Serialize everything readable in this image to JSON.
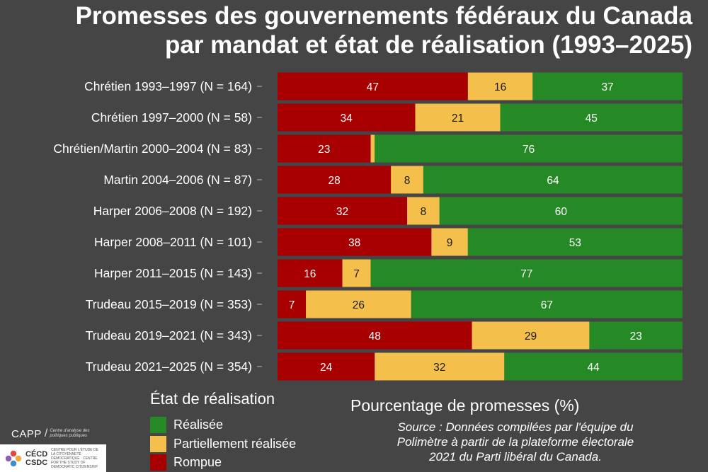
{
  "chart_data": {
    "type": "bar",
    "orientation": "horizontal",
    "stacked": true,
    "title_lines": [
      "Promesses des gouvernements fédéraux du Canada",
      "par mandat et état de réalisation (1993–2025)"
    ],
    "xlabel": "Pourcentage de promesses (%)",
    "xlim": [
      0,
      100
    ],
    "categories": [
      "Chrétien 1993–1997 (N = 164)",
      "Chrétien 1997–2000 (N = 58)",
      "Chrétien/Martin 2000–2004 (N = 83)",
      "Martin 2004–2006 (N = 87)",
      "Harper 2006–2008 (N = 192)",
      "Harper 2008–2011 (N = 101)",
      "Harper 2011–2015 (N = 143)",
      "Trudeau 2015–2019 (N = 353)",
      "Trudeau 2019–2021 (N = 343)",
      "Trudeau 2021–2025 (N = 354)"
    ],
    "series": [
      {
        "name": "Rompue",
        "color": "#a80000",
        "values": [
          47,
          34,
          23,
          28,
          32,
          38,
          16,
          7,
          48,
          24
        ]
      },
      {
        "name": "Partiellement réalisée",
        "color": "#f4c04b",
        "values": [
          16,
          21,
          1,
          8,
          8,
          9,
          7,
          26,
          29,
          32
        ]
      },
      {
        "name": "Réalisée",
        "color": "#258a25",
        "values": [
          37,
          45,
          76,
          64,
          60,
          53,
          77,
          67,
          23,
          44
        ]
      }
    ],
    "hidden_labels": [
      [
        2,
        1
      ]
    ],
    "legend": {
      "title": "État de réalisation",
      "items": [
        {
          "label": "Réalisée",
          "color": "#258a25"
        },
        {
          "label": "Partiellement réalisée",
          "color": "#f4c04b"
        },
        {
          "label": "Rompue",
          "color": "#a80000"
        }
      ],
      "position": "bottom-left"
    },
    "source_lines": [
      "Source : Données compilées par l'équipe du",
      "Polimètre à partir de la plateforme électorale",
      "2021 du Parti libéral du Canada."
    ]
  },
  "branding": {
    "capp_name": "CAPP",
    "capp_desc": "Centre d'analyse des politiques publiques",
    "cecd_name_1": "CÉCD",
    "cecd_name_2": "CSDC",
    "cecd_desc": "CENTRE POUR L'ÉTUDE DE LA CITOYENNETÉ DÉMOCRATIQUE · CENTRE FOR THE STUDY OF DEMOCRATIC CITIZENSHIP"
  }
}
